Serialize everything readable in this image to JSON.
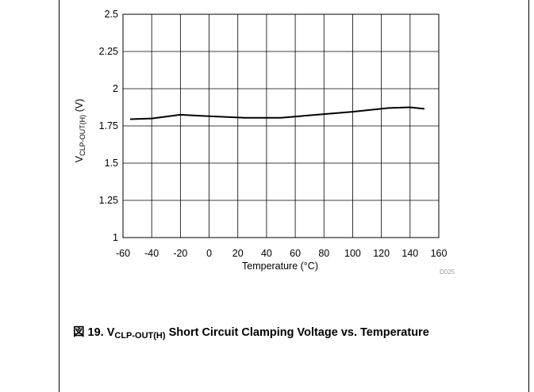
{
  "chart_data": {
    "type": "line",
    "xlabel": "Temperature (°C)",
    "ylabel": {
      "main": "V",
      "sub": "CLP-OUT(H)",
      "unit": " (V)"
    },
    "xlim": [
      -60,
      160
    ],
    "ylim": [
      1,
      2.5
    ],
    "xticks": [
      -60,
      -40,
      -20,
      0,
      20,
      40,
      60,
      80,
      100,
      120,
      140,
      160
    ],
    "yticks": [
      {
        "value": 1,
        "label": "1"
      },
      {
        "value": 1.25,
        "label": "1.25"
      },
      {
        "value": 1.5,
        "label": "1.5"
      },
      {
        "value": 1.75,
        "label": "1.75"
      },
      {
        "value": 2,
        "label": "2"
      },
      {
        "value": 2.25,
        "label": "2.25"
      },
      {
        "value": 2.5,
        "label": "2.5"
      }
    ],
    "grid": true,
    "series": [
      {
        "x": [
          -55,
          -40,
          -20,
          0,
          25,
          50,
          75,
          100,
          125,
          140,
          150
        ],
        "y": [
          1.795,
          1.8,
          1.825,
          1.815,
          1.805,
          1.805,
          1.825,
          1.845,
          1.87,
          1.875,
          1.865
        ],
        "color": "#000000"
      }
    ],
    "figure_id": "D025"
  },
  "caption": {
    "prefix": "図 19. V",
    "subscript": "CLP-OUT(H)",
    "suffix": " Short Circuit Clamping Voltage vs. Temperature"
  }
}
